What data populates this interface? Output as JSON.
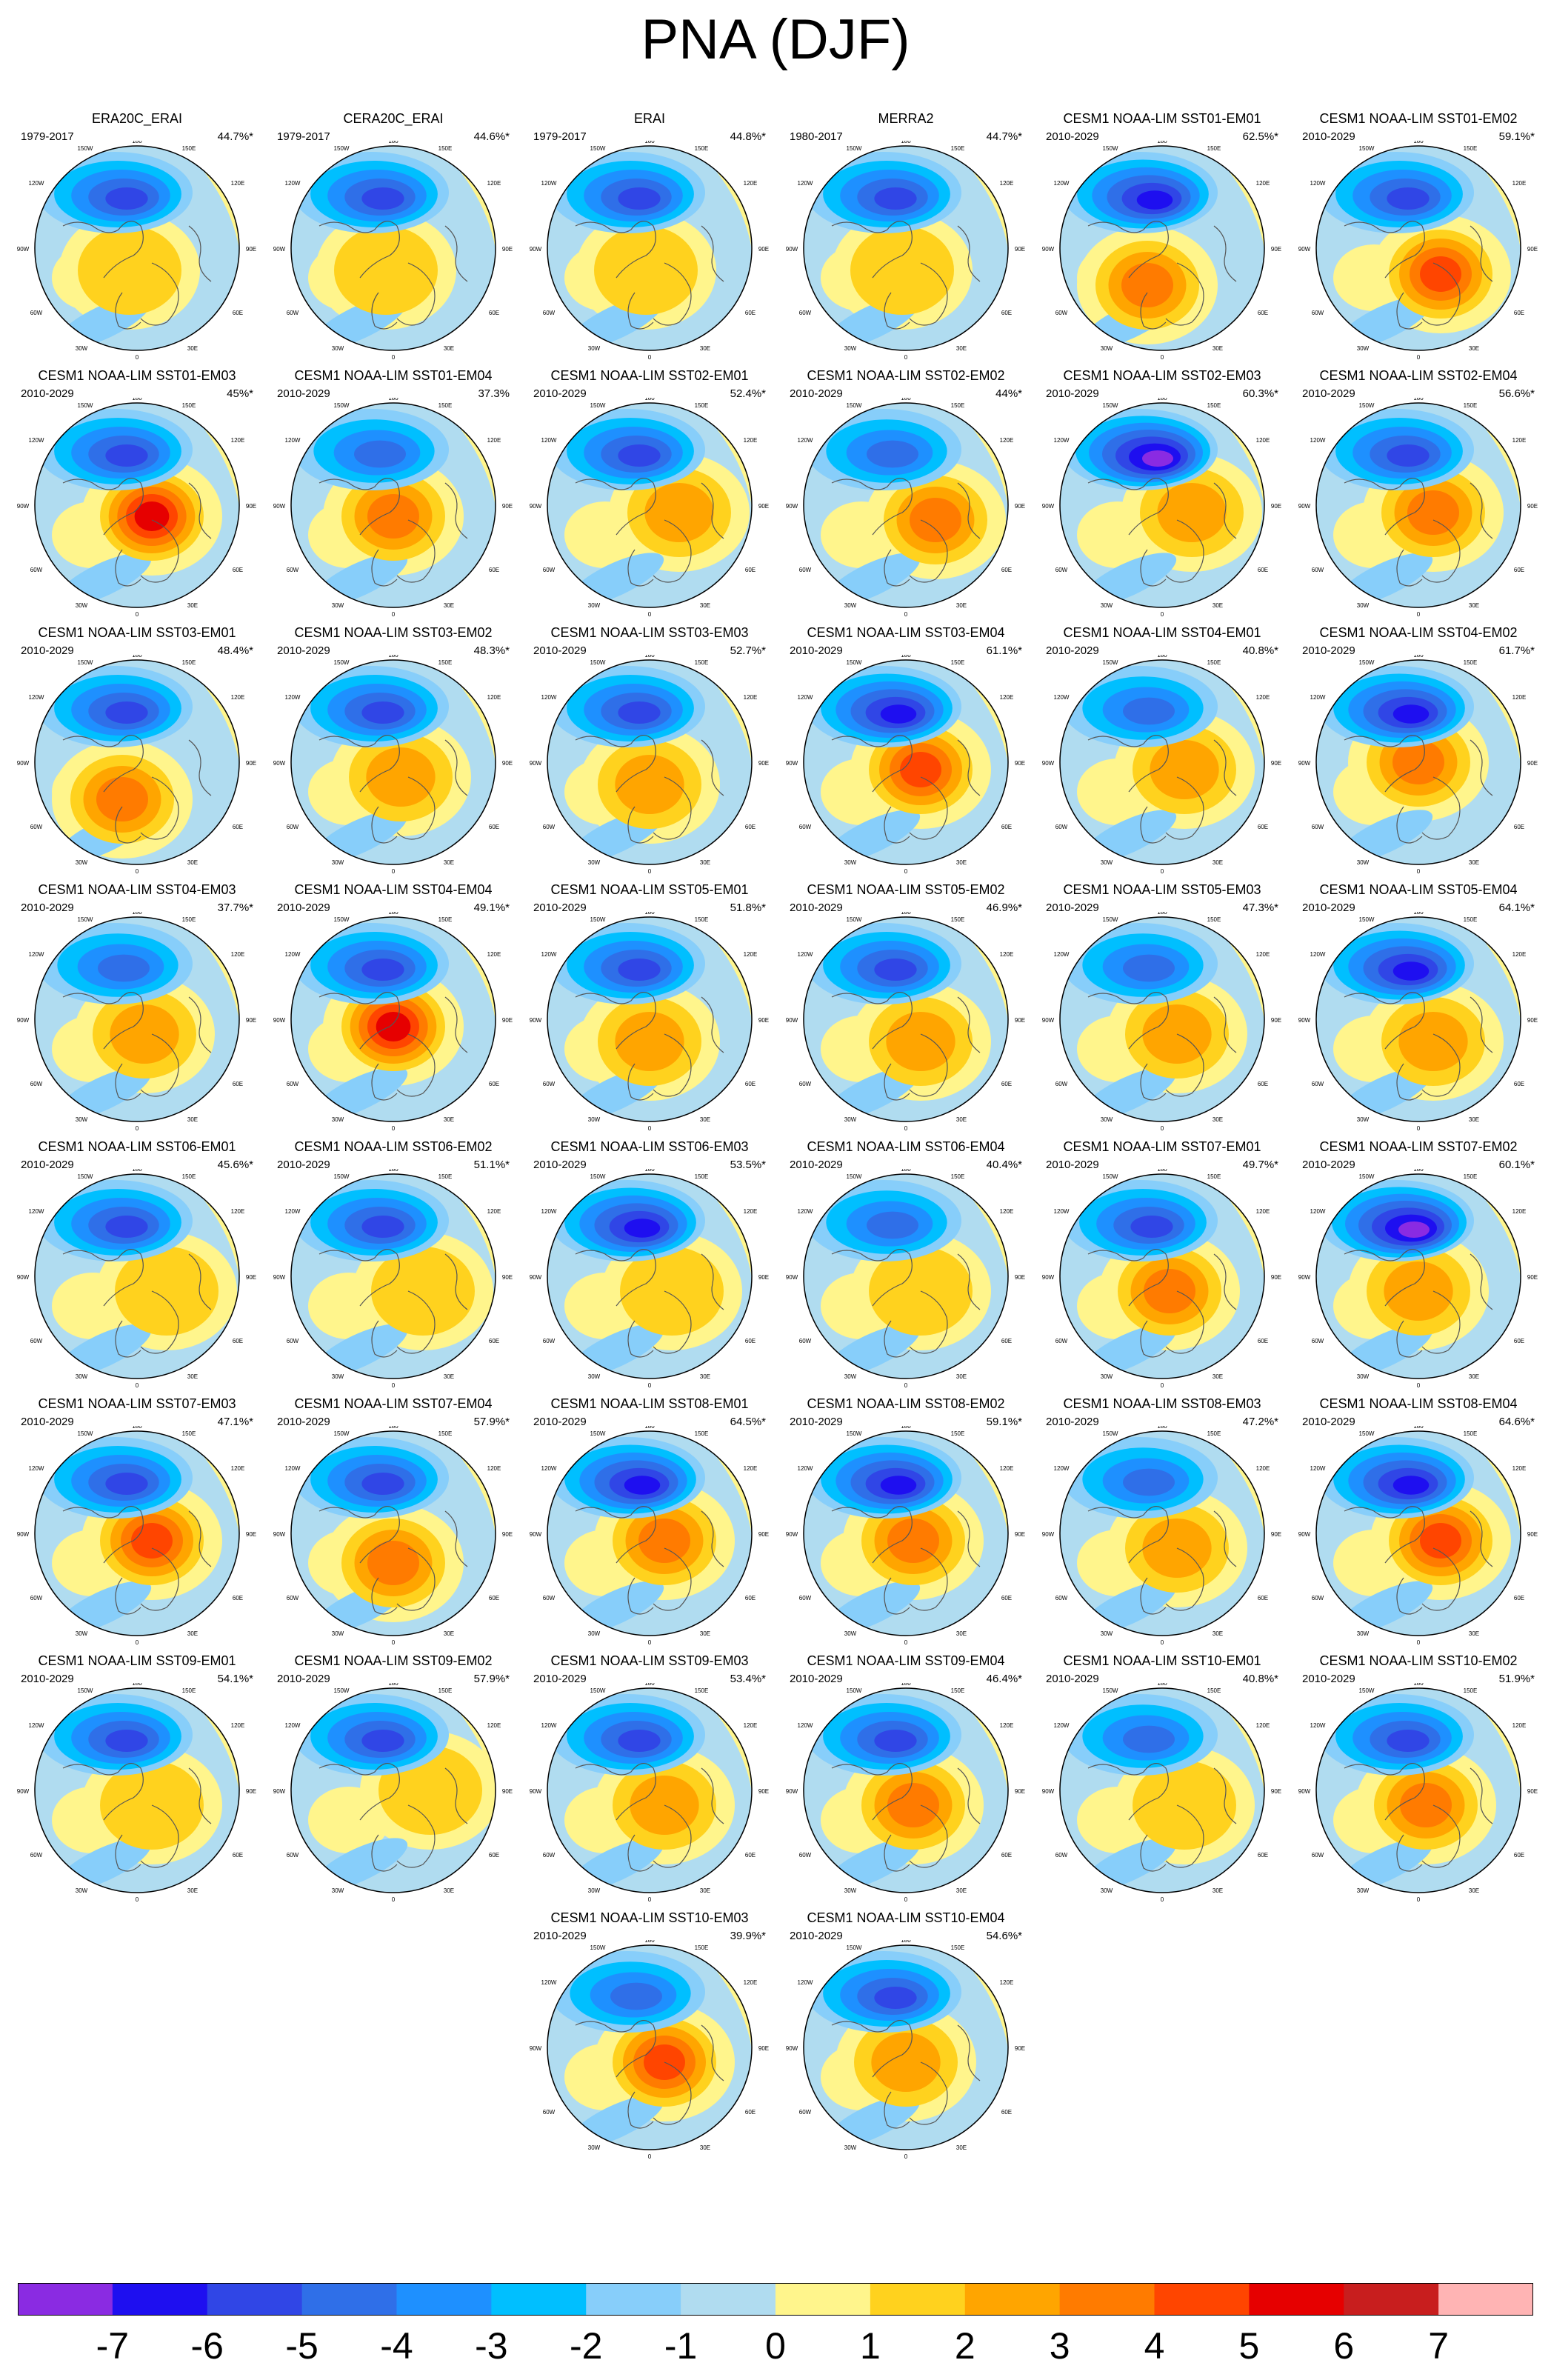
{
  "title": "PNA (DJF)",
  "colorbar": {
    "colors": [
      "#8a2be2",
      "#1e0ff0",
      "#3046e6",
      "#2f6fe8",
      "#1e90ff",
      "#00bfff",
      "#87cefa",
      "#b0dcf0",
      "#fff58c",
      "#ffd21e",
      "#ffa500",
      "#ff7b00",
      "#ff4500",
      "#e60000",
      "#c81e1e",
      "#ffb4b4"
    ],
    "labels": [
      "-7",
      "-6",
      "-5",
      "-4",
      "-3",
      "-2",
      "-1",
      "0",
      "1",
      "2",
      "3",
      "4",
      "5",
      "6",
      "7"
    ]
  },
  "map_labels": {
    "top": "180",
    "left": "90W",
    "right": "90E",
    "bottom": "0",
    "ul": "120W",
    "ur": "120E",
    "ul2": "150W",
    "ur2": "150E",
    "ll": "60W",
    "lr": "60E",
    "ll2": "30W",
    "lr2": "30E"
  },
  "panels": [
    {
      "title": "ERA20C_ERAI",
      "period": "1979-2017",
      "pct": "44.7%*",
      "neg": 5,
      "pos": 1,
      "pdx": -10,
      "pdy": 30
    },
    {
      "title": "CERA20C_ERAI",
      "period": "1979-2017",
      "pct": "44.6%*",
      "neg": 5,
      "pos": 1,
      "pdx": -10,
      "pdy": 30
    },
    {
      "title": "ERAI",
      "period": "1979-2017",
      "pct": "44.8%*",
      "neg": 5,
      "pos": 1,
      "pdx": -5,
      "pdy": 30
    },
    {
      "title": "MERRA2",
      "period": "1980-2017",
      "pct": "44.7%*",
      "neg": 5,
      "pos": 1,
      "pdx": -5,
      "pdy": 30
    },
    {
      "title": "CESM1 NOAA-LIM SST01-EM01",
      "period": "2010-2029",
      "pct": "62.5%*",
      "neg": 6,
      "pos": 3,
      "pdx": -20,
      "pdy": 50
    },
    {
      "title": "CESM1 NOAA-LIM SST01-EM02",
      "period": "2010-2029",
      "pct": "59.1%*",
      "neg": 5,
      "pos": 4,
      "pdx": 30,
      "pdy": 35
    },
    {
      "title": "CESM1 NOAA-LIM SST01-EM03",
      "period": "2010-2029",
      "pct": "45%*",
      "neg": 5,
      "pos": 5,
      "pdx": 20,
      "pdy": 15
    },
    {
      "title": "CESM1 NOAA-LIM SST01-EM04",
      "period": "2010-2029",
      "pct": "37.3%",
      "neg": 4,
      "pos": 3,
      "pdx": 0,
      "pdy": 15
    },
    {
      "title": "CESM1 NOAA-LIM SST02-EM01",
      "period": "2010-2029",
      "pct": "52.4%*",
      "neg": 5,
      "pos": 2,
      "pdx": 40,
      "pdy": 10
    },
    {
      "title": "CESM1 NOAA-LIM SST02-EM02",
      "period": "2010-2029",
      "pct": "44%*",
      "neg": 4,
      "pos": 3,
      "pdx": 40,
      "pdy": 20
    },
    {
      "title": "CESM1 NOAA-LIM SST02-EM03",
      "period": "2010-2029",
      "pct": "60.3%*",
      "neg": 7,
      "pos": 2,
      "pdx": 40,
      "pdy": 10
    },
    {
      "title": "CESM1 NOAA-LIM SST02-EM04",
      "period": "2010-2029",
      "pct": "56.6%*",
      "neg": 5,
      "pos": 3,
      "pdx": 20,
      "pdy": 10
    },
    {
      "title": "CESM1 NOAA-LIM SST03-EM01",
      "period": "2010-2029",
      "pct": "48.4%*",
      "neg": 5,
      "pos": 3,
      "pdx": -20,
      "pdy": 50
    },
    {
      "title": "CESM1 NOAA-LIM SST03-EM02",
      "period": "2010-2029",
      "pct": "48.3%*",
      "neg": 5,
      "pos": 2,
      "pdx": 10,
      "pdy": 20
    },
    {
      "title": "CESM1 NOAA-LIM SST03-EM03",
      "period": "2010-2029",
      "pct": "52.7%*",
      "neg": 5,
      "pos": 2,
      "pdx": 0,
      "pdy": 30
    },
    {
      "title": "CESM1 NOAA-LIM SST03-EM04",
      "period": "2010-2029",
      "pct": "61.1%*",
      "neg": 6,
      "pos": 4,
      "pdx": 20,
      "pdy": 10
    },
    {
      "title": "CESM1 NOAA-LIM SST04-EM01",
      "period": "2010-2029",
      "pct": "40.8%*",
      "neg": 4,
      "pos": 2,
      "pdx": 30,
      "pdy": 10
    },
    {
      "title": "CESM1 NOAA-LIM SST04-EM02",
      "period": "2010-2029",
      "pct": "61.7%*",
      "neg": 6,
      "pos": 3,
      "pdx": 0,
      "pdy": 0
    },
    {
      "title": "CESM1 NOAA-LIM SST04-EM03",
      "period": "2010-2029",
      "pct": "37.7%*",
      "neg": 4,
      "pos": 2,
      "pdx": 10,
      "pdy": 20
    },
    {
      "title": "CESM1 NOAA-LIM SST04-EM04",
      "period": "2010-2029",
      "pct": "49.1%*",
      "neg": 5,
      "pos": 5,
      "pdx": 0,
      "pdy": 10
    },
    {
      "title": "CESM1 NOAA-LIM SST05-EM01",
      "period": "2010-2029",
      "pct": "51.8%*",
      "neg": 5,
      "pos": 2,
      "pdx": 0,
      "pdy": 30
    },
    {
      "title": "CESM1 NOAA-LIM SST05-EM02",
      "period": "2010-2029",
      "pct": "46.9%*",
      "neg": 5,
      "pos": 2,
      "pdx": 20,
      "pdy": 30
    },
    {
      "title": "CESM1 NOAA-LIM SST05-EM03",
      "period": "2010-2029",
      "pct": "47.3%*",
      "neg": 4,
      "pos": 2,
      "pdx": 20,
      "pdy": 20
    },
    {
      "title": "CESM1 NOAA-LIM SST05-EM04",
      "period": "2010-2029",
      "pct": "64.1%*",
      "neg": 6,
      "pos": 2,
      "pdx": 20,
      "pdy": 30
    },
    {
      "title": "CESM1 NOAA-LIM SST06-EM01",
      "period": "2010-2029",
      "pct": "45.6%*",
      "neg": 5,
      "pos": 1,
      "pdx": 40,
      "pdy": 20
    },
    {
      "title": "CESM1 NOAA-LIM SST06-EM02",
      "period": "2010-2029",
      "pct": "51.1%*",
      "neg": 5,
      "pos": 1,
      "pdx": 40,
      "pdy": 20
    },
    {
      "title": "CESM1 NOAA-LIM SST06-EM03",
      "period": "2010-2029",
      "pct": "53.5%*",
      "neg": 6,
      "pos": 1,
      "pdx": 30,
      "pdy": 20
    },
    {
      "title": "CESM1 NOAA-LIM SST06-EM04",
      "period": "2010-2029",
      "pct": "40.4%*",
      "neg": 4,
      "pos": 1,
      "pdx": 20,
      "pdy": 20
    },
    {
      "title": "CESM1 NOAA-LIM SST07-EM01",
      "period": "2010-2029",
      "pct": "49.7%*",
      "neg": 5,
      "pos": 3,
      "pdx": 10,
      "pdy": 20
    },
    {
      "title": "CESM1 NOAA-LIM SST07-EM02",
      "period": "2010-2029",
      "pct": "60.1%*",
      "neg": 7,
      "pos": 2,
      "pdx": 0,
      "pdy": 20
    },
    {
      "title": "CESM1 NOAA-LIM SST07-EM03",
      "period": "2010-2029",
      "pct": "47.1%*",
      "neg": 5,
      "pos": 4,
      "pdx": 20,
      "pdy": 10
    },
    {
      "title": "CESM1 NOAA-LIM SST07-EM04",
      "period": "2010-2029",
      "pct": "57.9%*",
      "neg": 5,
      "pos": 3,
      "pdx": 0,
      "pdy": 40
    },
    {
      "title": "CESM1 NOAA-LIM SST08-EM01",
      "period": "2010-2029",
      "pct": "64.5%*",
      "neg": 6,
      "pos": 3,
      "pdx": 20,
      "pdy": 10
    },
    {
      "title": "CESM1 NOAA-LIM SST08-EM02",
      "period": "2010-2029",
      "pct": "59.1%*",
      "neg": 6,
      "pos": 3,
      "pdx": 10,
      "pdy": 10
    },
    {
      "title": "CESM1 NOAA-LIM SST08-EM03",
      "period": "2010-2029",
      "pct": "47.2%*",
      "neg": 4,
      "pos": 2,
      "pdx": 20,
      "pdy": 20
    },
    {
      "title": "CESM1 NOAA-LIM SST08-EM04",
      "period": "2010-2029",
      "pct": "64.6%*",
      "neg": 6,
      "pos": 4,
      "pdx": 30,
      "pdy": 10
    },
    {
      "title": "CESM1 NOAA-LIM SST09-EM01",
      "period": "2010-2029",
      "pct": "54.1%*",
      "neg": 5,
      "pos": 1,
      "pdx": 20,
      "pdy": 20
    },
    {
      "title": "CESM1 NOAA-LIM SST09-EM02",
      "period": "2010-2029",
      "pct": "57.9%*",
      "neg": 5,
      "pos": 1,
      "pdx": 50,
      "pdy": 0
    },
    {
      "title": "CESM1 NOAA-LIM SST09-EM03",
      "period": "2010-2029",
      "pct": "53.4%*",
      "neg": 5,
      "pos": 2,
      "pdx": 20,
      "pdy": 20
    },
    {
      "title": "CESM1 NOAA-LIM SST09-EM04",
      "period": "2010-2029",
      "pct": "46.4%*",
      "neg": 5,
      "pos": 3,
      "pdx": 10,
      "pdy": 20
    },
    {
      "title": "CESM1 NOAA-LIM SST10-EM01",
      "period": "2010-2029",
      "pct": "40.8%*",
      "neg": 4,
      "pos": 1,
      "pdx": 30,
      "pdy": 20
    },
    {
      "title": "CESM1 NOAA-LIM SST10-EM02",
      "period": "2010-2029",
      "pct": "51.9%*",
      "neg": 5,
      "pos": 3,
      "pdx": 10,
      "pdy": 20
    },
    {
      "title": "CESM1 NOAA-LIM SST10-EM03",
      "period": "2010-2029",
      "pct": "39.9%*",
      "neg": 4,
      "pos": 4,
      "pdx": 20,
      "pdy": 20
    },
    {
      "title": "CESM1 NOAA-LIM SST10-EM04",
      "period": "2010-2029",
      "pct": "54.6%*",
      "neg": 5,
      "pos": 2,
      "pdx": 0,
      "pdy": 20
    }
  ]
}
